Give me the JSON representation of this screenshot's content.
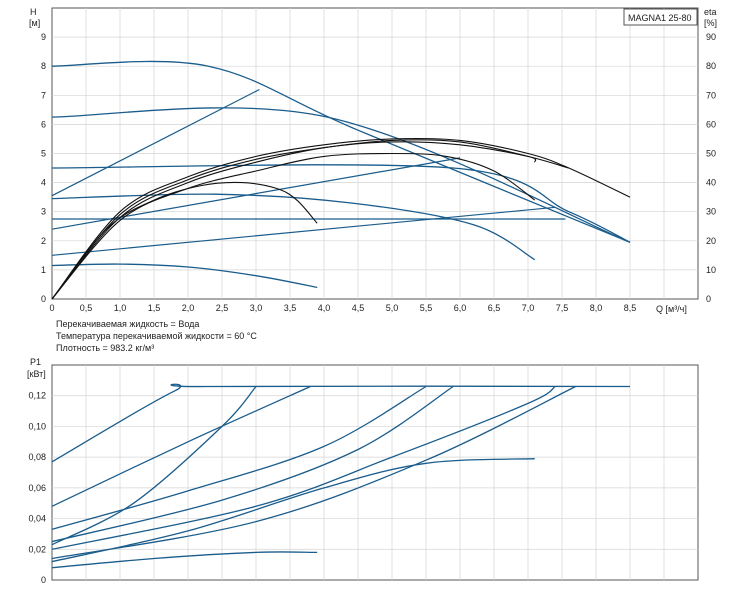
{
  "chart_data": [
    {
      "type": "line",
      "title": "MAGNA1 25-80",
      "y_label": "H",
      "y_unit": "[м]",
      "y2_label": "eta",
      "y2_unit": "[%]",
      "x_label": "Q [м³/ч]",
      "xlim": [
        0,
        9.5
      ],
      "ylim": [
        0,
        10
      ],
      "y2lim": [
        0,
        100
      ],
      "x_ticks": [
        "0",
        "0,5",
        "1,0",
        "1,5",
        "2,0",
        "2,5",
        "3,0",
        "3,5",
        "4,0",
        "4,5",
        "5,0",
        "5,5",
        "6,0",
        "6,5",
        "7,0",
        "7,5",
        "8,0",
        "8,5"
      ],
      "y_ticks": [
        "0",
        "1",
        "2",
        "3",
        "4",
        "5",
        "6",
        "7",
        "8",
        "9"
      ],
      "y2_ticks": [
        "0",
        "10",
        "20",
        "30",
        "40",
        "50",
        "60",
        "70",
        "80",
        "90"
      ],
      "grid": true,
      "colors": {
        "performance": "#1a5c8c",
        "efficiency": "#111111",
        "grid": "#d4d4d4"
      },
      "performance_curves": [
        {
          "points": [
            [
              0,
              8.0
            ],
            [
              2.3,
              8.0
            ],
            [
              4.5,
              5.8
            ],
            [
              8.5,
              1.95
            ]
          ]
        },
        {
          "points": [
            [
              0,
              6.25
            ],
            [
              4.05,
              6.25
            ],
            [
              8.5,
              1.95
            ]
          ]
        },
        {
          "points": [
            [
              0,
              4.5
            ],
            [
              5.9,
              4.5
            ],
            [
              7.6,
              3.0
            ],
            [
              8.5,
              1.95
            ]
          ]
        },
        {
          "points": [
            [
              0,
              3.45
            ],
            [
              2.4,
              3.6
            ],
            [
              4.4,
              3.3
            ],
            [
              6.2,
              2.55
            ],
            [
              7.1,
              1.35
            ]
          ]
        },
        {
          "points": [
            [
              0,
              2.75
            ],
            [
              7.55,
              2.75
            ]
          ]
        },
        {
          "points": [
            [
              0,
              1.15
            ],
            [
              1,
              1.2
            ],
            [
              2,
              1.1
            ],
            [
              3,
              0.8
            ],
            [
              3.9,
              0.4
            ]
          ]
        }
      ],
      "system_curves": [
        {
          "points": [
            [
              0,
              3.55
            ],
            [
              3.05,
              7.2
            ]
          ]
        },
        {
          "points": [
            [
              0,
              2.4
            ],
            [
              6.0,
              4.85
            ]
          ]
        },
        {
          "points": [
            [
              0,
              1.5
            ],
            [
              7.4,
              3.15
            ]
          ]
        }
      ],
      "efficiency_curves": [
        {
          "points": [
            [
              0,
              0
            ],
            [
              0.8,
              24
            ],
            [
              1.5,
              34
            ],
            [
              2.2,
              39
            ],
            [
              2.8,
              40
            ],
            [
              3.3,
              38
            ],
            [
              3.6,
              34
            ],
            [
              3.9,
              26
            ]
          ]
        },
        {
          "points": [
            [
              0,
              0
            ],
            [
              1,
              27
            ],
            [
              2,
              38
            ],
            [
              3,
              44
            ],
            [
              4,
              49
            ],
            [
              5,
              50
            ],
            [
              5.8,
              49
            ],
            [
              6.5,
              44
            ],
            [
              7.1,
              34
            ]
          ]
        },
        {
          "points": [
            [
              0,
              0
            ],
            [
              1,
              28
            ],
            [
              2,
              40
            ],
            [
              3,
              47
            ],
            [
              4,
              52
            ],
            [
              5,
              54
            ],
            [
              6,
              53
            ],
            [
              7,
              49
            ],
            [
              7.1,
              47
            ]
          ]
        },
        {
          "points": [
            [
              0,
              0
            ],
            [
              1,
              29
            ],
            [
              2,
              41
            ],
            [
              3,
              48
            ],
            [
              4,
              52
            ],
            [
              5,
              54.5
            ],
            [
              6,
              54
            ],
            [
              7,
              49
            ],
            [
              7.6,
              45
            ]
          ]
        },
        {
          "points": [
            [
              0,
              0
            ],
            [
              1,
              30
            ],
            [
              2,
              42
            ],
            [
              3,
              49
            ],
            [
              4,
              53
            ],
            [
              5,
              55
            ],
            [
              6,
              54.5
            ],
            [
              7,
              50
            ],
            [
              7.6,
              45
            ],
            [
              8.5,
              35
            ]
          ]
        }
      ],
      "notes": [
        "Перекачиваемая жидкость = Вода",
        "Температура перекачиваемой жидкости = 60 °C",
        "Плотность = 983.2 кг/м³"
      ]
    },
    {
      "type": "line",
      "y_label": "P1",
      "y_unit": "[кВт]",
      "xlim": [
        0,
        9.5
      ],
      "ylim": [
        0,
        0.14
      ],
      "y_ticks": [
        "0",
        "0,02",
        "0,04",
        "0,06",
        "0,08",
        "0,10",
        "0,12"
      ],
      "grid": true,
      "power_curves": [
        {
          "points": [
            [
              0,
              0.077
            ],
            [
              1.8,
              0.123
            ],
            [
              2.3,
              0.126
            ],
            [
              8.5,
              0.126
            ]
          ]
        },
        {
          "points": [
            [
              0,
              0.048
            ],
            [
              2.0,
              0.09
            ],
            [
              3.8,
              0.126
            ]
          ]
        },
        {
          "points": [
            [
              0,
              0.023
            ],
            [
              1.2,
              0.05
            ],
            [
              2.5,
              0.1
            ],
            [
              3.0,
              0.126
            ]
          ]
        },
        {
          "points": [
            [
              0,
              0.033
            ],
            [
              2.0,
              0.058
            ],
            [
              4.0,
              0.087
            ],
            [
              5.5,
              0.126
            ]
          ]
        },
        {
          "points": [
            [
              0,
              0.025
            ],
            [
              2.5,
              0.052
            ],
            [
              4.5,
              0.085
            ],
            [
              5.9,
              0.126
            ]
          ]
        },
        {
          "points": [
            [
              0,
              0.02
            ],
            [
              3.0,
              0.048
            ],
            [
              5.0,
              0.08
            ],
            [
              7.0,
              0.115
            ],
            [
              7.4,
              0.126
            ]
          ]
        },
        {
          "points": [
            [
              0,
              0.014
            ],
            [
              3.0,
              0.038
            ],
            [
              5.5,
              0.078
            ],
            [
              7.7,
              0.126
            ]
          ]
        },
        {
          "points": [
            [
              0,
              0.012
            ],
            [
              2.0,
              0.032
            ],
            [
              4.0,
              0.06
            ],
            [
              5.5,
              0.076
            ],
            [
              7.1,
              0.079
            ]
          ]
        },
        {
          "points": [
            [
              0,
              0.008
            ],
            [
              1.5,
              0.014
            ],
            [
              3.0,
              0.018
            ],
            [
              3.9,
              0.018
            ]
          ]
        }
      ]
    }
  ]
}
